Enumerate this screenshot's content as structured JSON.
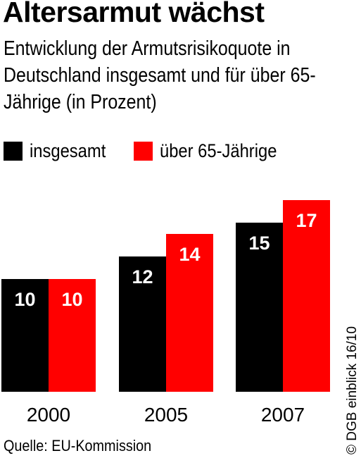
{
  "title": "Altersarmut wächst",
  "subtitle": "Entwicklung der Armutsrisikoquote in Deutschland insgesamt und für über 65-Jährige (in Prozent)",
  "source": "Quelle: EU-Kommission",
  "credit": "© DGB einblick 16/10",
  "colors": {
    "insgesamt": "#000000",
    "ueber65": "#ff0000",
    "label": "#ffffff"
  },
  "chart_data": {
    "type": "bar",
    "categories": [
      "2000",
      "2005",
      "2007"
    ],
    "series": [
      {
        "name": "insgesamt",
        "values": [
          10,
          12,
          15
        ]
      },
      {
        "name": "über 65-Jährige",
        "values": [
          10,
          14,
          17
        ]
      }
    ],
    "title": "Altersarmut wächst",
    "xlabel": "",
    "ylabel": "",
    "grid": false,
    "legend_position": "top-left",
    "data_labels": true
  }
}
